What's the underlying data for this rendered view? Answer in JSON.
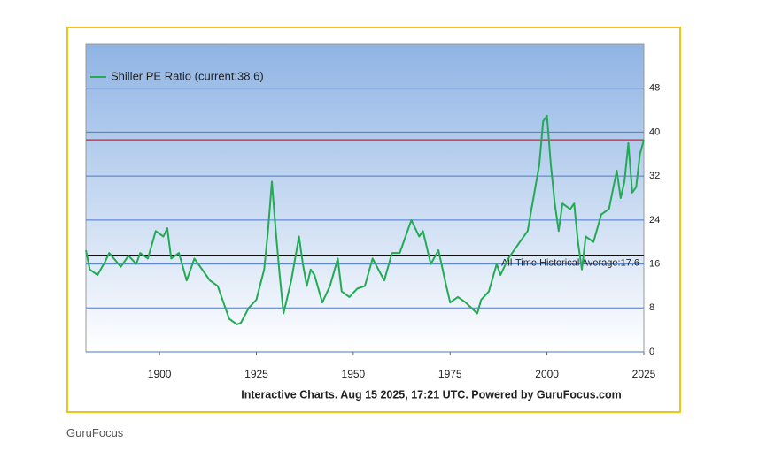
{
  "chart_data": {
    "type": "line",
    "legend_label": "Shiller PE Ratio (current:38.6)",
    "footer": "Interactive Charts. Aug 15 2025, 17:21 UTC. Powered by GuruFocus.com",
    "source": "GuruFocus",
    "x": [
      1881,
      1882,
      1884,
      1886,
      1887,
      1890,
      1892,
      1894,
      1895,
      1897,
      1899,
      1901,
      1902,
      1903,
      1905,
      1907,
      1909,
      1911,
      1913,
      1915,
      1917,
      1918,
      1920,
      1921,
      1923,
      1925,
      1927,
      1928,
      1929,
      1930,
      1931,
      1932,
      1933,
      1934,
      1936,
      1937,
      1938,
      1939,
      1940,
      1942,
      1944,
      1946,
      1947,
      1949,
      1951,
      1953,
      1955,
      1958,
      1960,
      1962,
      1965,
      1967,
      1968,
      1970,
      1972,
      1974,
      1975,
      1977,
      1979,
      1982,
      1983,
      1985,
      1987,
      1988,
      1990,
      1993,
      1995,
      1997,
      1998,
      1999,
      2000,
      2001,
      2002,
      2003,
      2004,
      2006,
      2007,
      2008,
      2009,
      2010,
      2012,
      2014,
      2016,
      2018,
      2019,
      2020,
      2021,
      2022,
      2023,
      2024,
      2025
    ],
    "series": [
      {
        "name": "Shiller PE Ratio",
        "color": "#22aa55",
        "values": [
          18.5,
          15,
          14,
          16.5,
          18,
          15.5,
          17.5,
          16,
          18,
          17,
          22,
          21,
          22.5,
          17,
          18,
          13,
          17,
          15,
          13,
          12,
          8,
          6,
          5,
          5.3,
          8,
          9.5,
          15,
          22,
          31,
          22,
          14,
          7,
          10,
          13,
          21,
          16,
          12,
          15,
          14,
          9,
          12,
          17,
          11,
          10,
          11.5,
          12,
          17,
          13,
          18,
          18,
          24,
          21,
          22,
          16,
          18.5,
          12,
          9,
          10,
          9,
          7,
          9.5,
          11,
          16,
          14,
          17,
          20,
          22,
          30,
          34,
          42,
          43,
          34,
          27,
          22,
          27,
          26,
          27,
          20,
          15,
          21,
          20,
          25,
          26,
          33,
          28,
          31,
          38,
          29,
          30,
          36,
          38.6
        ]
      }
    ],
    "reference_lines": [
      {
        "value": 38.6,
        "color": "#cc2233"
      },
      {
        "value": 17.6,
        "color": "#111111",
        "label": "All-Time Historical Average:17.6"
      }
    ],
    "xlim": [
      1881,
      2025
    ],
    "xticks": [
      1900,
      1925,
      1950,
      1975,
      2000,
      2025
    ],
    "ylim": [
      0,
      56
    ],
    "yticks": [
      0,
      8,
      16,
      24,
      32,
      40,
      48
    ],
    "grid": true
  }
}
